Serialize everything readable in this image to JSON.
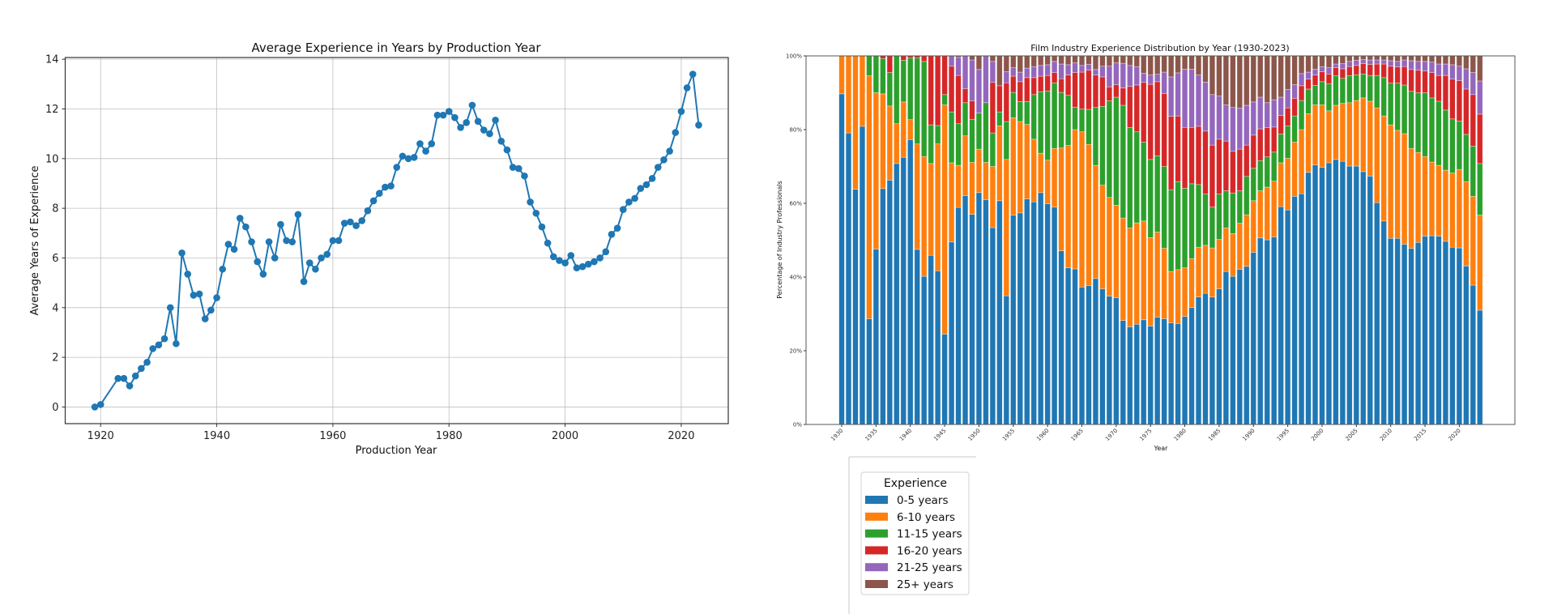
{
  "chart_data": [
    {
      "type": "line",
      "title": "Average Experience in Years by Production Year",
      "xlabel": "Production Year",
      "ylabel": "Average Years of Experience",
      "xlim": [
        1913.9,
        2028.1
      ],
      "ylim": [
        -0.67,
        14.07
      ],
      "xticks": [
        1920,
        1940,
        1960,
        1980,
        2000,
        2020
      ],
      "yticks": [
        0,
        2,
        4,
        6,
        8,
        10,
        12,
        14
      ],
      "grid": true,
      "color": "#1f77b4",
      "x": [
        1919,
        1920,
        1923,
        1924,
        1925,
        1926,
        1927,
        1928,
        1929,
        1930,
        1931,
        1932,
        1933,
        1934,
        1935,
        1936,
        1937,
        1938,
        1939,
        1940,
        1941,
        1942,
        1943,
        1944,
        1945,
        1946,
        1947,
        1948,
        1949,
        1950,
        1951,
        1952,
        1953,
        1954,
        1955,
        1956,
        1957,
        1958,
        1959,
        1960,
        1961,
        1962,
        1963,
        1964,
        1965,
        1966,
        1967,
        1968,
        1969,
        1970,
        1971,
        1972,
        1973,
        1974,
        1975,
        1976,
        1977,
        1978,
        1979,
        1980,
        1981,
        1982,
        1983,
        1984,
        1985,
        1986,
        1987,
        1988,
        1989,
        1990,
        1991,
        1992,
        1993,
        1994,
        1995,
        1996,
        1997,
        1998,
        1999,
        2000,
        2001,
        2002,
        2003,
        2004,
        2005,
        2006,
        2007,
        2008,
        2009,
        2010,
        2011,
        2012,
        2013,
        2014,
        2015,
        2016,
        2017,
        2018,
        2019,
        2020,
        2021,
        2022,
        2023
      ],
      "y": [
        0.0,
        0.1,
        1.15,
        1.15,
        0.85,
        1.25,
        1.55,
        1.8,
        2.35,
        2.5,
        2.75,
        4.0,
        2.55,
        6.2,
        5.35,
        4.5,
        4.55,
        3.55,
        3.9,
        4.4,
        5.55,
        6.55,
        6.35,
        7.6,
        7.25,
        6.65,
        5.85,
        5.35,
        6.65,
        6.0,
        7.35,
        6.7,
        6.65,
        7.75,
        5.05,
        5.8,
        5.55,
        6.0,
        6.15,
        6.7,
        6.7,
        7.4,
        7.45,
        7.3,
        7.5,
        7.9,
        8.3,
        8.6,
        8.85,
        8.9,
        9.65,
        10.1,
        10.0,
        10.05,
        10.6,
        10.3,
        10.6,
        11.75,
        11.75,
        11.9,
        11.65,
        11.25,
        11.45,
        12.15,
        11.5,
        11.15,
        11.0,
        11.55,
        10.7,
        10.35,
        9.65,
        9.6,
        9.3,
        8.25,
        7.8,
        7.25,
        6.6,
        6.05,
        5.9,
        5.8,
        6.1,
        5.6,
        5.65,
        5.75,
        5.85,
        6.0,
        6.25,
        6.95,
        7.2,
        7.95,
        8.25,
        8.4,
        8.8,
        8.95,
        9.2,
        9.65,
        9.95,
        10.3,
        11.05,
        11.9,
        12.85,
        13.4,
        11.35
      ]
    },
    {
      "type": "bar",
      "stacked": true,
      "title": "Film Industry Experience Distribution by Year (1930-2023)",
      "xlabel": "Year",
      "ylabel": "Percentage of Industry Professionals",
      "x_start": 1930,
      "x_end": 2023,
      "xlim": [
        1924.8,
        2028.1
      ],
      "ylim": [
        0,
        100
      ],
      "xticks": [
        1930,
        1935,
        1940,
        1945,
        1950,
        1955,
        1960,
        1965,
        1970,
        1975,
        1980,
        1985,
        1990,
        1995,
        2000,
        2005,
        2010,
        2015,
        2020
      ],
      "yticks": [
        "0%",
        "20%",
        "40%",
        "60%",
        "80%",
        "100%"
      ],
      "grid": false,
      "legend": {
        "title": "Experience",
        "placement": "below"
      },
      "series": [
        {
          "name": "0-5 years",
          "color": "#1f77b4",
          "values": [
            89.7,
            79.1,
            63.8,
            80.9,
            28.7,
            47.6,
            64.0,
            66.3,
            70.8,
            72.5,
            77.3,
            47.5,
            40.2,
            45.9,
            41.7,
            24.5,
            49.5,
            58.9,
            62.1,
            57.0,
            62.9,
            61.0,
            53.4,
            60.7,
            34.9,
            56.8,
            57.4,
            61.2,
            60.4,
            62.9,
            59.9,
            59.0,
            47.1,
            42.5,
            42.2,
            37.3,
            37.7,
            39.6,
            36.8,
            34.8,
            34.4,
            28.2,
            26.5,
            27.2,
            28.4,
            26.7,
            29.1,
            28.7,
            27.6,
            27.4,
            29.3,
            31.7,
            34.6,
            35.6,
            34.6,
            36.8,
            41.5,
            40.2,
            42.1,
            42.9,
            46.7,
            50.6,
            50.1,
            50.9,
            59.1,
            58.2,
            61.9,
            62.6,
            68.4,
            70.4,
            69.8,
            71.0,
            71.9,
            71.4,
            70.1,
            70.1,
            68.6,
            67.4,
            60.2,
            55.2,
            50.5,
            50.5,
            48.9,
            47.8,
            49.4,
            51.1,
            51.2,
            51.1,
            49.7,
            48.1,
            47.9,
            43.0,
            37.8,
            31.0
          ]
        },
        {
          "name": "6-10 years",
          "color": "#ff7f0e",
          "values": [
            10.3,
            20.9,
            36.2,
            19.1,
            65.9,
            42.4,
            25.7,
            20.1,
            10.8,
            15.0,
            5.4,
            28.6,
            32.5,
            24.9,
            34.4,
            62.2,
            21.5,
            11.4,
            16.2,
            14.1,
            11.8,
            10.1,
            16.6,
            20.3,
            37.0,
            26.4,
            24.8,
            20.2,
            17.0,
            10.7,
            11.8,
            15.9,
            27.9,
            33.2,
            37.8,
            42.1,
            38.3,
            30.7,
            28.1,
            26.8,
            25.1,
            27.8,
            26.8,
            27.5,
            26.8,
            24.0,
            23.1,
            19.1,
            13.9,
            14.6,
            13.2,
            13.3,
            13.5,
            13.0,
            13.3,
            13.4,
            11.8,
            11.6,
            12.5,
            14.0,
            14.0,
            12.8,
            14.3,
            15.1,
            11.9,
            14.0,
            14.7,
            17.4,
            15.9,
            16.3,
            16.9,
            14.1,
            14.7,
            15.7,
            17.2,
            17.8,
            20.0,
            20.3,
            25.7,
            28.5,
            30.8,
            29.3,
            30.0,
            27.1,
            24.4,
            21.6,
            20.0,
            19.2,
            19.3,
            20.1,
            21.3,
            22.9,
            24.1,
            25.8
          ]
        },
        {
          "name": "11-15 years",
          "color": "#2ca02c",
          "values": [
            0,
            0,
            0,
            0,
            5.4,
            10.0,
            9.6,
            9.1,
            18.4,
            11.3,
            16.7,
            23.3,
            25.8,
            10.5,
            5.0,
            2.8,
            13.8,
            11.3,
            9.0,
            11.7,
            9.8,
            16.2,
            9.1,
            3.8,
            10.3,
            6.9,
            5.4,
            6.2,
            12.1,
            16.7,
            18.8,
            17.8,
            15.1,
            13.6,
            6.1,
            6.2,
            9.5,
            15.7,
            21.4,
            26.2,
            29.3,
            30.6,
            27.3,
            24.7,
            21.4,
            21.2,
            20.7,
            22.2,
            22.2,
            23.9,
            21.6,
            20.3,
            17.0,
            13.9,
            11.1,
            12.3,
            10.1,
            11.0,
            8.8,
            10.4,
            8.8,
            8.2,
            8.2,
            7.9,
            7.8,
            8.8,
            7.1,
            7.9,
            6.7,
            5.3,
            6.3,
            7.3,
            8.0,
            6.8,
            7.3,
            7.0,
            6.5,
            7.0,
            8.8,
            10.4,
            11.3,
            12.8,
            13.2,
            15.5,
            16.2,
            17.3,
            17.4,
            17.4,
            16.3,
            14.7,
            13.1,
            12.8,
            13.6,
            14.0
          ]
        },
        {
          "name": "16-20 years",
          "color": "#d62728",
          "values": [
            0,
            0,
            0,
            0,
            0,
            0,
            0.7,
            4.5,
            0,
            1.2,
            0.6,
            0.6,
            1.5,
            18.7,
            18.9,
            10.5,
            12.4,
            13.1,
            3.8,
            5.0,
            0,
            0,
            13.7,
            7.1,
            10.5,
            4.4,
            5.4,
            6.5,
            4.6,
            4.2,
            4.2,
            2.8,
            3.7,
            5.5,
            9.4,
            10.0,
            10.6,
            8.8,
            8.0,
            3.8,
            3.4,
            4.7,
            11.1,
            12.7,
            16.2,
            20.4,
            20.1,
            19.8,
            19.9,
            17.8,
            16.5,
            15.3,
            15.8,
            17.1,
            16.8,
            14.9,
            13.5,
            11.3,
            11.3,
            8.5,
            9.0,
            8.6,
            7.9,
            6.8,
            5.0,
            4.9,
            4.8,
            4.0,
            2.7,
            2.8,
            2.7,
            2.7,
            2.2,
            2.6,
            2.5,
            2.5,
            2.8,
            3.0,
            3.1,
            3.7,
            4.6,
            4.4,
            5.0,
            5.9,
            6.1,
            5.9,
            6.9,
            7.0,
            9.4,
            10.8,
            11.0,
            12.3,
            14.0,
            13.4
          ]
        },
        {
          "name": "21-25 years",
          "color": "#9467bd",
          "values": [
            0,
            0,
            0,
            0,
            0,
            0,
            0,
            0,
            0,
            0,
            0,
            0,
            0,
            0,
            0,
            0,
            2.8,
            4.9,
            8.9,
            11.1,
            11.8,
            12.7,
            5.7,
            0,
            3.0,
            2.3,
            2.6,
            2.6,
            3.0,
            2.9,
            2.9,
            3.0,
            4.0,
            2.8,
            2.6,
            1.8,
            1.6,
            1.5,
            2.9,
            5.6,
            5.9,
            6.7,
            5.7,
            5.0,
            2.5,
            2.5,
            2.0,
            5.8,
            10.7,
            11.7,
            15.8,
            15.8,
            13.9,
            13.3,
            13.7,
            11.7,
            9.8,
            11.9,
            11.1,
            10.8,
            9.0,
            8.6,
            6.8,
            7.4,
            5.0,
            5.0,
            3.7,
            3.3,
            1.9,
            1.6,
            1.4,
            1.7,
            1.0,
            1.4,
            1.4,
            1.4,
            1.1,
            1.2,
            1.1,
            1.1,
            1.5,
            1.5,
            1.8,
            2.4,
            2.4,
            2.6,
            2.8,
            3.1,
            3.1,
            3.9,
            3.9,
            5.5,
            6.0,
            9.0
          ]
        },
        {
          "name": "25+ years",
          "color": "#8c564b",
          "values": [
            0,
            0,
            0,
            0,
            0,
            0,
            0,
            0,
            0,
            0,
            0,
            0,
            0,
            0,
            0,
            0,
            0,
            0.4,
            0,
            1.1,
            3.7,
            0,
            1.5,
            8.1,
            4.3,
            3.2,
            4.4,
            3.3,
            2.9,
            2.6,
            2.4,
            1.5,
            2.2,
            2.4,
            1.9,
            2.6,
            2.3,
            3.7,
            2.8,
            2.8,
            1.9,
            2.0,
            2.6,
            2.9,
            4.7,
            5.2,
            5.0,
            4.4,
            5.7,
            4.6,
            3.6,
            3.6,
            5.2,
            7.1,
            10.5,
            10.9,
            13.3,
            14.0,
            14.2,
            13.4,
            12.5,
            11.2,
            12.7,
            11.9,
            11.2,
            9.1,
            7.8,
            4.8,
            4.4,
            3.6,
            2.9,
            3.2,
            2.2,
            2.1,
            1.5,
            1.2,
            1.0,
            1.1,
            1.1,
            1.1,
            1.3,
            1.5,
            1.1,
            1.3,
            1.5,
            1.5,
            1.7,
            2.2,
            2.2,
            2.4,
            2.8,
            3.5,
            4.5,
            6.8
          ]
        }
      ]
    }
  ]
}
